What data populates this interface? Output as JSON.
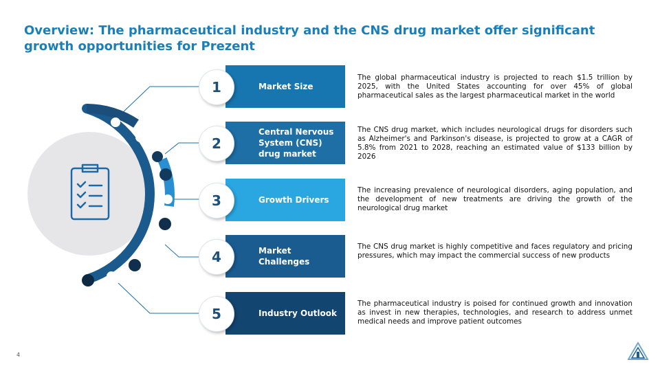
{
  "slide": {
    "title": "Overview: The pharmaceutical industry and the CNS drug market offer significant growth opportunities for Prezent",
    "page_number": "4"
  },
  "colors": {
    "title": "#1a7fb8",
    "bar_1": "#1776b0",
    "bar_2": "#1d6fa6",
    "bar_3": "#2aa6e0",
    "bar_4": "#1a5c90",
    "bar_5": "#12456f",
    "arc_dark": "#1a4f7d",
    "arc_light": "#2a88c7",
    "hub_bg": "#e6e6e8"
  },
  "hub": {
    "icon": "checklist-icon"
  },
  "items": [
    {
      "number": "1",
      "label": "Market Size",
      "description": "The global pharmaceutical industry is projected to reach $1.5 trillion by 2025, with the United States accounting for over 45% of global pharmaceutical sales as the largest pharmaceutical market in the world"
    },
    {
      "number": "2",
      "label": "Central Nervous System (CNS) drug market",
      "description": "The CNS drug market, which includes neurological drugs for disorders such as Alzheimer's and Parkinson's disease, is projected to grow at a CAGR of 5.8% from 2021 to 2028, reaching an estimated value of $133 billion by 2026"
    },
    {
      "number": "3",
      "label": "Growth Drivers",
      "description": "The increasing prevalence of neurological disorders, aging population, and the development of new treatments are driving the growth of the neurological drug market"
    },
    {
      "number": "4",
      "label": "Market Challenges",
      "description": "The CNS drug market is highly competitive and faces regulatory and pricing pressures, which may impact the commercial success of new products"
    },
    {
      "number": "5",
      "label": "Industry Outlook",
      "description": "The pharmaceutical industry is poised for continued growth and innovation as invest in new therapies, technologies, and research to address unmet medical needs and improve patient outcomes"
    }
  ],
  "logo": {
    "icon": "prezent-logo-icon"
  }
}
